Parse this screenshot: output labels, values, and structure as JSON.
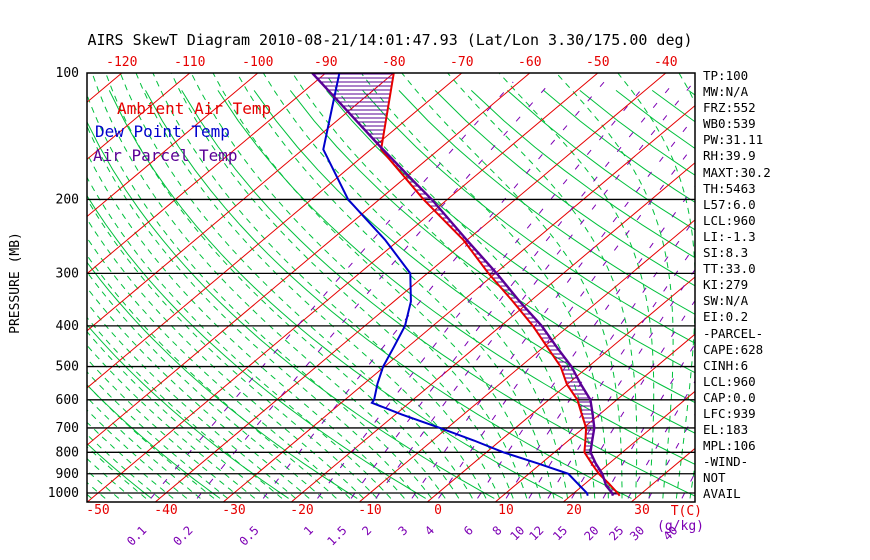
{
  "title": "AIRS SkewT Diagram 2010-08-21/14:01:47.93 (Lat/Lon 3.30/175.00 deg)",
  "legend": {
    "ambient": "Ambient Air Temp",
    "dew": "Dew Point Temp",
    "parcel": "Air Parcel Temp"
  },
  "axes": {
    "pressure_label": "PRESSURE (MB)",
    "pressure_ticks": [
      100,
      200,
      300,
      400,
      500,
      600,
      700,
      800,
      900,
      1000
    ],
    "top_temp_ticks": [
      -120,
      -110,
      -100,
      -90,
      -80,
      -70,
      -60,
      -50,
      -40
    ],
    "bottom_temp_ticks": [
      -50,
      -40,
      -30,
      -20,
      -10,
      0,
      10,
      20,
      30
    ],
    "temp_unit_label": "T(C)",
    "mixing_ratio_ticks": [
      0.1,
      0.2,
      0.5,
      1,
      1.5,
      2,
      3,
      4,
      6,
      8,
      10,
      12,
      15,
      20,
      25,
      30,
      40
    ],
    "mixing_unit_label": "(g/kg)"
  },
  "stats": [
    "TP:100",
    "MW:N/A",
    "FRZ:552",
    "WB0:539",
    "PW:31.11",
    "RH:39.9",
    "MAXT:30.2",
    "TH:5463",
    "L57:6.0",
    "LCL:960",
    "LI:-1.3",
    "SI:8.3",
    "TT:33.0",
    "KI:279",
    "SW:N/A",
    "EI:0.2",
    "-PARCEL-",
    "CAPE:628",
    "CINH:6",
    "LCL:960",
    "CAP:0.0",
    "LFC:939",
    "EL:183",
    "MPL:106",
    "-WIND-",
    "NOT",
    "AVAIL"
  ],
  "colors": {
    "ambient": "#e60000",
    "dew_point": "#0000cc",
    "parcel": "#5a0096",
    "isotherm": "#e60000",
    "dry_adiabat": "#00c03c",
    "moist_adiabat": "#00c03c",
    "mixing_ratio": "#7d00b4",
    "axis": "#000000"
  },
  "chart_data": {
    "type": "line",
    "diagram": "skew-t-log-p",
    "title": "AIRS SkewT Diagram 2010-08-21/14:01:47.93 (Lat/Lon 3.30/175.00 deg)",
    "x_axis": {
      "label": "T(C)",
      "bottom_range": [
        -50,
        40
      ],
      "top_range": [
        -120,
        -40
      ],
      "skew": "isotherms slant up-right"
    },
    "y_axis": {
      "label": "PRESSURE (MB)",
      "scale": "log",
      "range": [
        100,
        1000
      ]
    },
    "secondary_x_axis": {
      "label": "(g/kg)",
      "ticks": [
        0.1,
        0.2,
        0.5,
        1,
        1.5,
        2,
        3,
        4,
        6,
        8,
        10,
        12,
        15,
        20,
        25,
        30,
        40
      ]
    },
    "grid": {
      "isotherms_step_C": 10,
      "dry_adiabats_step_K": 10,
      "moist_adiabats": "dashed green",
      "mixing_ratio_lines": "dashed purple"
    },
    "legend_position": "top-left inside plot",
    "hatched_area": "horizontal purple hatching between Ambient Air Temp and Air Parcel Temp curves (CAPE/CIN region)",
    "series": [
      {
        "name": "Ambient Air Temp",
        "color": "#e60000",
        "units": [
          "mb",
          "degC"
        ],
        "points": [
          [
            100,
            -80
          ],
          [
            152,
            -68.5
          ],
          [
            200,
            -53.5
          ],
          [
            250,
            -40.5
          ],
          [
            300,
            -31
          ],
          [
            350,
            -22.5
          ],
          [
            400,
            -15.3
          ],
          [
            450,
            -9.4
          ],
          [
            500,
            -4.1
          ],
          [
            552,
            0
          ],
          [
            600,
            4.2
          ],
          [
            650,
            7.4
          ],
          [
            700,
            10.4
          ],
          [
            750,
            12.5
          ],
          [
            800,
            14.4
          ],
          [
            850,
            17.4
          ],
          [
            900,
            20.3
          ],
          [
            950,
            23.5
          ],
          [
            1000,
            26.4
          ],
          [
            1015,
            27.2
          ]
        ]
      },
      {
        "name": "Dew Point Temp",
        "color": "#0000cc",
        "units": [
          "mb",
          "degC"
        ],
        "points": [
          [
            100,
            -88
          ],
          [
            152,
            -77
          ],
          [
            200,
            -64.6
          ],
          [
            250,
            -52
          ],
          [
            300,
            -42.5
          ],
          [
            350,
            -37.5
          ],
          [
            400,
            -34.1
          ],
          [
            450,
            -32
          ],
          [
            500,
            -30.2
          ],
          [
            550,
            -28
          ],
          [
            600,
            -25.7
          ],
          [
            610,
            -25.5
          ],
          [
            650,
            -19.1
          ],
          [
            700,
            -11.1
          ],
          [
            750,
            -3.9
          ],
          [
            800,
            2.5
          ],
          [
            850,
            9.5
          ],
          [
            900,
            15.8
          ],
          [
            950,
            18.9
          ],
          [
            1000,
            21.9
          ],
          [
            1015,
            22.5
          ]
        ]
      },
      {
        "name": "Air Parcel Temp",
        "color": "#5a0096",
        "units": [
          "mb",
          "degC"
        ],
        "points": [
          [
            100,
            -92
          ],
          [
            150,
            -69
          ],
          [
            183,
            -57.5
          ],
          [
            200,
            -52.3
          ],
          [
            250,
            -40
          ],
          [
            300,
            -29.8
          ],
          [
            350,
            -21.5
          ],
          [
            400,
            -14
          ],
          [
            450,
            -8
          ],
          [
            500,
            -2.5
          ],
          [
            550,
            1.9
          ],
          [
            600,
            6.1
          ],
          [
            650,
            9
          ],
          [
            700,
            11.6
          ],
          [
            750,
            13.5
          ],
          [
            800,
            15.3
          ],
          [
            850,
            18
          ],
          [
            900,
            20.8
          ],
          [
            950,
            23
          ],
          [
            960,
            23.4
          ],
          [
            1000,
            25.6
          ],
          [
            1015,
            26.2
          ]
        ]
      }
    ]
  }
}
